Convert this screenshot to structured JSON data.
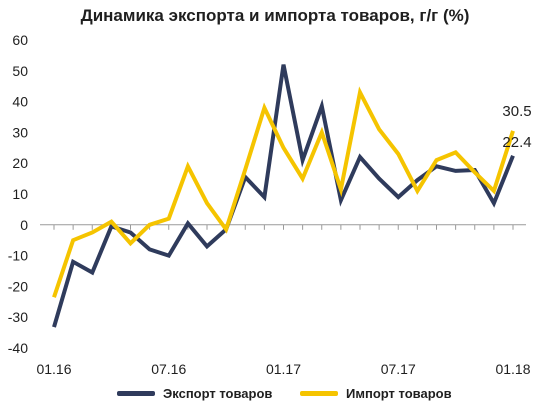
{
  "chart_data": {
    "type": "line",
    "title": "Динамика экспорта и импорта товаров, г/г (%)",
    "xlabel": "",
    "ylabel": "",
    "ylim": [
      -40,
      60
    ],
    "yticks": [
      -40,
      -30,
      -20,
      -10,
      0,
      10,
      20,
      30,
      40,
      50,
      60
    ],
    "x_tick_labels": [
      "01.16",
      "07.16",
      "01.17",
      "07.17",
      "01.18"
    ],
    "grid": false,
    "legend": "bottom",
    "x": [
      "01.16",
      "02.16",
      "03.16",
      "04.16",
      "05.16",
      "06.16",
      "07.16",
      "08.16",
      "09.16",
      "10.16",
      "11.16",
      "12.16",
      "01.17",
      "02.17",
      "03.17",
      "04.17",
      "05.17",
      "06.17",
      "07.17",
      "08.17",
      "09.17",
      "10.17",
      "11.17",
      "12.17",
      "01.18"
    ],
    "series": [
      {
        "name": "Экспорт товаров",
        "color": "#2f3b5c",
        "values": [
          -33.2,
          -12,
          -15.5,
          -0.5,
          -2.5,
          -8,
          -10,
          0.5,
          -7,
          -1.5,
          15.5,
          9,
          52,
          21,
          38.5,
          8,
          22,
          15,
          9,
          14.5,
          19,
          17.5,
          17.8,
          7,
          22.4
        ]
      },
      {
        "name": "Импорт товаров",
        "color": "#f5c400",
        "values": [
          -23.5,
          -5,
          -2.5,
          1,
          -6,
          0,
          2,
          19,
          7,
          -1.5,
          18,
          38,
          25,
          15,
          30,
          11.5,
          43,
          31,
          23,
          11,
          21,
          23.5,
          17,
          11,
          30.5
        ]
      }
    ],
    "data_labels": [
      {
        "series": 1,
        "index": 24,
        "text": "30.5"
      },
      {
        "series": 0,
        "index": 24,
        "text": "22.4"
      }
    ]
  }
}
